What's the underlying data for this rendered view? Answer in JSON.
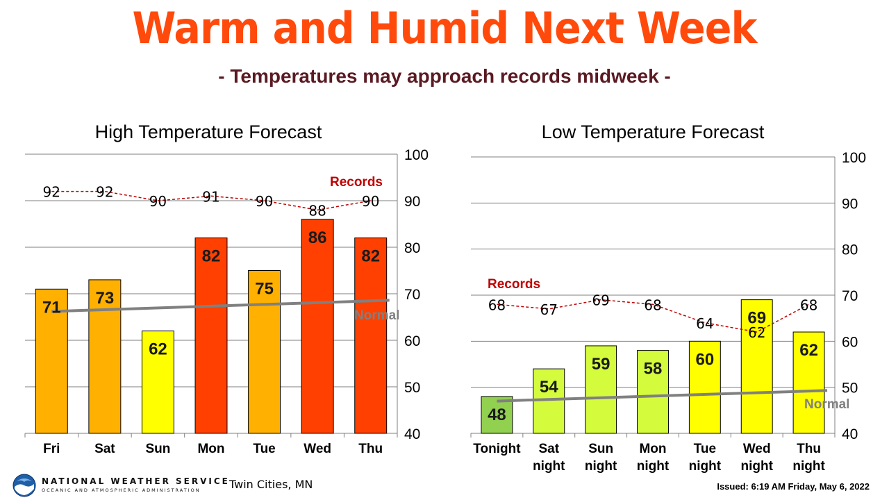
{
  "header": {
    "title": "Warm and Humid Next Week",
    "subtitle": "- Temperatures may approach records midweek -"
  },
  "footer": {
    "agency": "NATIONAL WEATHER SERVICE",
    "agency_sub": "OCEANIC AND ATMOSPHERIC ADMINISTRATION",
    "location": "Twin Cities, MN",
    "issued": "Issued: 6:19 AM Friday, May 6, 2022"
  },
  "colors": {
    "title": "#ff4a0c",
    "subtitle": "#5a1a22",
    "records": "#c00000",
    "normal": "#808080",
    "bar_outline": "#000000"
  },
  "chart_data": [
    {
      "type": "bar",
      "title": "High Temperature Forecast",
      "categories": [
        "Fri",
        "Sat",
        "Sun",
        "Mon",
        "Tue",
        "Wed",
        "Thu"
      ],
      "values": [
        71,
        73,
        62,
        82,
        75,
        86,
        82
      ],
      "bar_colors": [
        "#ffb000",
        "#ffb000",
        "#ffff00",
        "#ff4000",
        "#ffb000",
        "#ff4000",
        "#ff4000"
      ],
      "ylim": [
        40,
        100
      ],
      "yticks": [
        40,
        50,
        60,
        70,
        80,
        90,
        100
      ],
      "grid": true,
      "records": {
        "label": "Records",
        "values": [
          92,
          92,
          90,
          91,
          90,
          88,
          90
        ]
      },
      "normal": {
        "label": "Normal",
        "start": 66.2,
        "end": 68.6
      }
    },
    {
      "type": "bar",
      "title": "Low Temperature Forecast",
      "categories": [
        "Tonight",
        "Sat\nnight",
        "Sun\nnight",
        "Mon\nnight",
        "Tue\nnight",
        "Wed\nnight",
        "Thu\nnight"
      ],
      "values": [
        48,
        54,
        59,
        58,
        60,
        69,
        62
      ],
      "bar_colors": [
        "#92d050",
        "#d4fc3c",
        "#d4fc3c",
        "#d4fc3c",
        "#ffff00",
        "#ffff00",
        "#ffff00"
      ],
      "ylim": [
        40,
        100
      ],
      "yticks": [
        40,
        50,
        60,
        70,
        80,
        90,
        100
      ],
      "grid": true,
      "records": {
        "label": "Records",
        "values": [
          68,
          67,
          69,
          68,
          64,
          62,
          68
        ]
      },
      "normal": {
        "label": "Normal",
        "start": 47.0,
        "end": 49.3
      }
    }
  ]
}
